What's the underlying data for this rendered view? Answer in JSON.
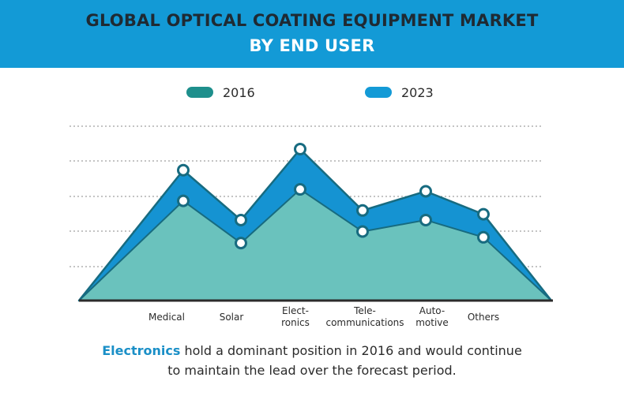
{
  "header": {
    "title_line1": "GLOBAL OPTICAL COATING EQUIPMENT  MARKET",
    "title_line2": "BY END USER"
  },
  "colors": {
    "header_bg": "#139ad6",
    "series_2016": "#1e8f8c",
    "series_2023": "#139ad6",
    "area_2016": "#6ac2bd",
    "area_2023": "#1593d2",
    "outline": "#176b80"
  },
  "chart_data": {
    "type": "area",
    "categories": [
      "Medical",
      "Solar",
      "Elect-\nronics",
      "Tele-\ncommunications",
      "Auto-\nmotive",
      "Others"
    ],
    "series": [
      {
        "name": "2016",
        "values": [
          52,
          30,
          58,
          36,
          42,
          33
        ],
        "color": "#1e8f8c"
      },
      {
        "name": "2023",
        "values": [
          68,
          42,
          79,
          47,
          57,
          45
        ],
        "color": "#139ad6"
      }
    ],
    "ylim": [
      0,
      100
    ],
    "grid": true,
    "legend": "top"
  },
  "footer": {
    "highlight": "Electronics",
    "line1_rest": " hold a dominant position in 2016 and would continue",
    "line2": "to maintain the lead over the forecast period."
  }
}
